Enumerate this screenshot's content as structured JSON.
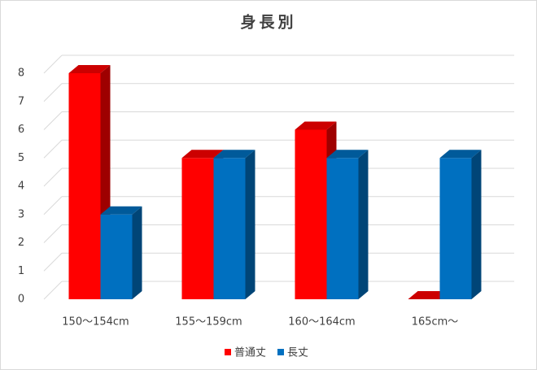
{
  "chart_data": {
    "type": "bar3d",
    "title": "身長別",
    "categories": [
      "150～154cm",
      "155～159cm",
      "160～164cm",
      "165cm～"
    ],
    "series": [
      {
        "name": "普通丈",
        "color": "#ff0000",
        "values": [
          8,
          5,
          6,
          0
        ]
      },
      {
        "name": "長丈",
        "color": "#0070c0",
        "values": [
          3,
          5,
          5,
          5
        ]
      }
    ],
    "ylim": [
      0,
      8
    ],
    "yticks": [
      0,
      1,
      2,
      3,
      4,
      5,
      6,
      7,
      8
    ],
    "grid": true,
    "legend": "bottom"
  }
}
